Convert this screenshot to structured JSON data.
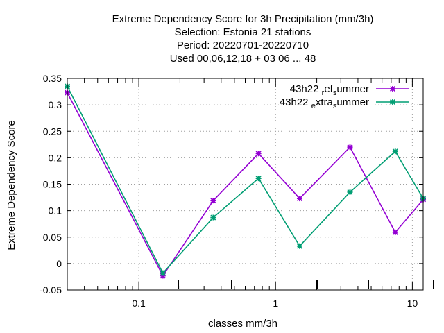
{
  "chart_data": {
    "type": "line",
    "title_lines": [
      "Extreme Dependency Score  for 3h Precipitation (mm/3h)",
      "Selection: Estonia      21 stations",
      "Period: 20220701-20220710",
      "Used  00,06,12,18  + 03 06 ... 48"
    ],
    "xlabel": "classes mm/3h",
    "ylabel": "Extreme Dependency Score",
    "xscale": "log",
    "xlim": [
      0.03,
      12
    ],
    "ylim": [
      -0.05,
      0.35
    ],
    "x_ticks": [
      {
        "value": 0.1,
        "label": "0.1"
      },
      {
        "value": 1,
        "label": "1"
      },
      {
        "value": 10,
        "label": "10"
      }
    ],
    "y_ticks": [
      {
        "value": -0.05,
        "label": "-0.05"
      },
      {
        "value": 0,
        "label": "0"
      },
      {
        "value": 0.05,
        "label": "0.05"
      },
      {
        "value": 0.1,
        "label": "0.1"
      },
      {
        "value": 0.15,
        "label": "0.15"
      },
      {
        "value": 0.2,
        "label": "0.2"
      },
      {
        "value": 0.25,
        "label": "0.25"
      },
      {
        "value": 0.3,
        "label": "0.3"
      },
      {
        "value": 0.35,
        "label": "0.35"
      }
    ],
    "grid": true,
    "legend_position": "top-right",
    "x": [
      0.03,
      0.15,
      0.35,
      0.75,
      1.5,
      3.5,
      7.5,
      12
    ],
    "series": [
      {
        "name_parts": [
          {
            "text": "43h22 ",
            "shift": "none"
          },
          {
            "text": "r",
            "shift": "sub"
          },
          {
            "text": "ef",
            "shift": "none"
          },
          {
            "text": "s",
            "shift": "sub"
          },
          {
            "text": "ummer",
            "shift": "none"
          }
        ],
        "color": "#9400d3",
        "values": [
          0.323,
          -0.023,
          0.119,
          0.208,
          0.123,
          0.22,
          0.059,
          0.121
        ]
      },
      {
        "name_parts": [
          {
            "text": "43h22 ",
            "shift": "none"
          },
          {
            "text": "e",
            "shift": "sub"
          },
          {
            "text": "xtra",
            "shift": "none"
          },
          {
            "text": "s",
            "shift": "sub"
          },
          {
            "text": "ummer",
            "shift": "none"
          }
        ],
        "color": "#009e73",
        "values": [
          0.335,
          -0.018,
          0.087,
          0.161,
          0.033,
          0.135,
          0.212,
          0.123
        ]
      }
    ]
  }
}
